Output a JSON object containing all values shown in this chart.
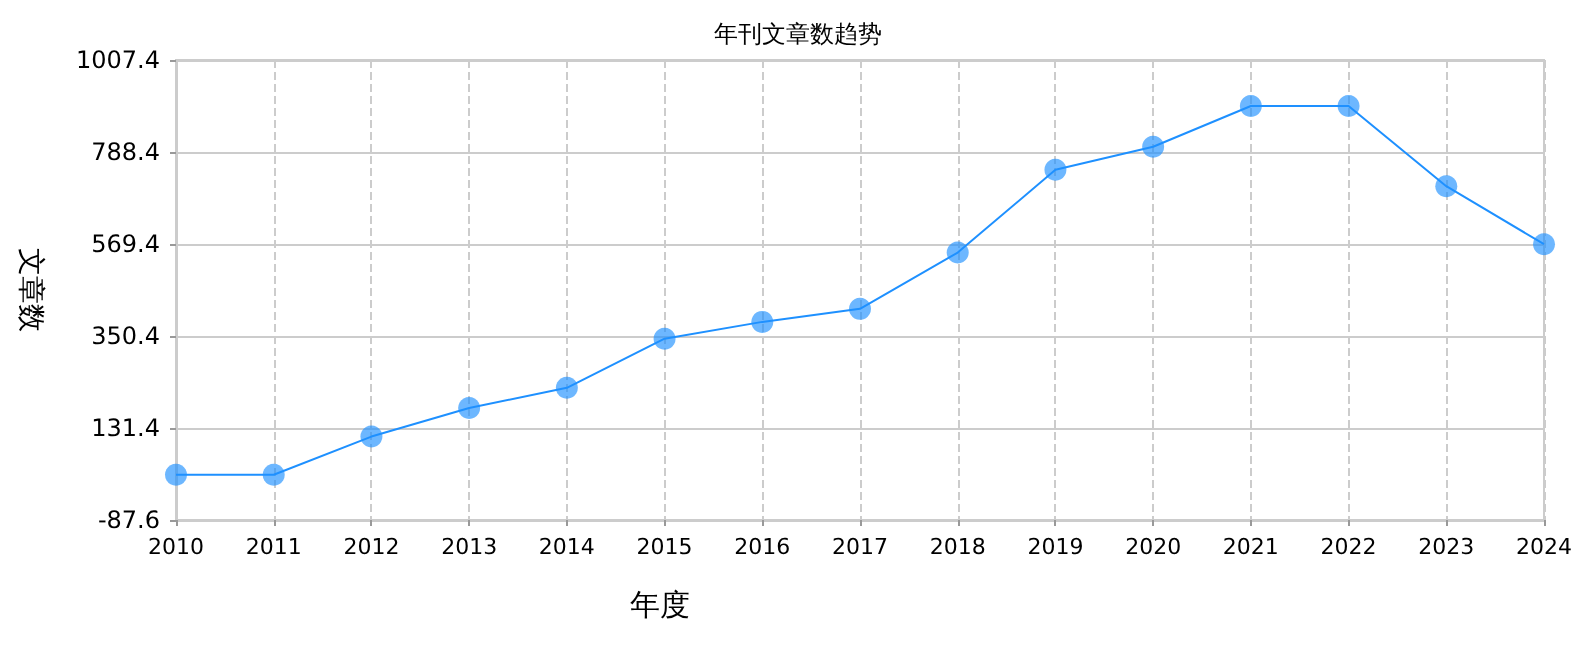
{
  "chart_data": {
    "type": "line",
    "title": "年刊文章数趋势",
    "xlabel": "年度",
    "ylabel": "文章数",
    "categories": [
      "2010",
      "2011",
      "2012",
      "2013",
      "2014",
      "2015",
      "2016",
      "2017",
      "2018",
      "2019",
      "2020",
      "2021",
      "2022",
      "2023",
      "2024"
    ],
    "series": [
      {
        "color": "#1e90ff",
        "values": [
          20,
          20,
          111,
          179,
          227,
          344,
          384,
          415,
          549,
          746,
          801,
          898,
          898,
          707,
          569
        ]
      }
    ],
    "ylim": [
      -87.6,
      1007.4
    ],
    "yticks": [
      -87.6,
      131.4,
      350.4,
      569.4,
      788.4,
      1007.4
    ],
    "grid": true,
    "marker": "circle",
    "line_style": "solid"
  }
}
